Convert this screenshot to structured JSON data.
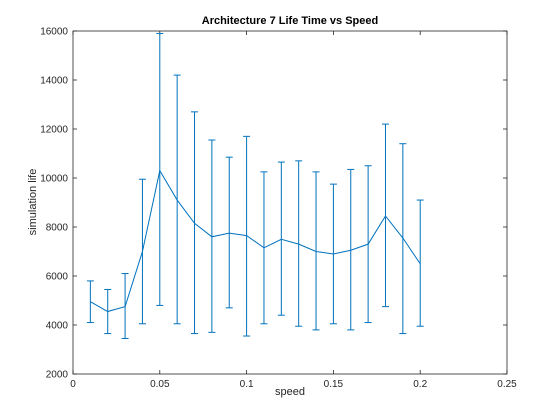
{
  "chart_data": {
    "type": "line",
    "title": "Architecture 7 Life Time vs Speed",
    "xlabel": "speed",
    "ylabel": "simulation life",
    "xlim": [
      0,
      0.25
    ],
    "ylim": [
      2000,
      16000
    ],
    "xticks": [
      0,
      0.05,
      0.1,
      0.15,
      0.2,
      0.25
    ],
    "xtick_labels": [
      "0",
      "0.05",
      "0.1",
      "0.15",
      "0.2",
      "0.25"
    ],
    "yticks": [
      2000,
      4000,
      6000,
      8000,
      10000,
      12000,
      14000,
      16000
    ],
    "ytick_labels": [
      "2000",
      "4000",
      "6000",
      "8000",
      "10000",
      "12000",
      "14000",
      "16000"
    ],
    "grid": false,
    "line_color": "#0072bd",
    "series": [
      {
        "x": [
          0.01,
          0.02,
          0.03,
          0.04,
          0.05,
          0.06,
          0.07,
          0.08,
          0.09,
          0.1,
          0.11,
          0.12,
          0.13,
          0.14,
          0.15,
          0.16,
          0.17,
          0.18,
          0.19,
          0.2
        ],
        "y": [
          4950,
          4550,
          4750,
          7000,
          10300,
          9100,
          8150,
          7600,
          7750,
          7650,
          7150,
          7500,
          7300,
          7000,
          6900,
          7050,
          7300,
          8450,
          7550,
          6500
        ],
        "err_low": [
          4100,
          3650,
          3450,
          4050,
          4800,
          4050,
          3650,
          3700,
          4700,
          3550,
          4050,
          4400,
          3950,
          3800,
          4050,
          3800,
          4100,
          4750,
          3650,
          3950
        ],
        "err_high": [
          5800,
          5450,
          6100,
          9950,
          15900,
          14200,
          12700,
          11550,
          10850,
          11700,
          10250,
          10650,
          10700,
          10250,
          9750,
          10350,
          10500,
          12200,
          11400,
          9100
        ]
      }
    ]
  }
}
